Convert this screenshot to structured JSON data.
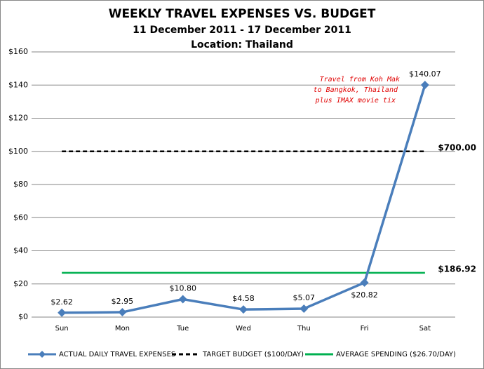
{
  "chart_data": {
    "type": "line",
    "title": "WEEKLY TRAVEL EXPENSES VS. BUDGET",
    "subtitle": "11 December 2011 - 17 December 2011",
    "location": "Location: Thailand",
    "categories": [
      "Sun",
      "Mon",
      "Tue",
      "Wed",
      "Thu",
      "Fri",
      "Sat"
    ],
    "series": [
      {
        "name": "ACTUAL DAILY TRAVEL EXPENSES",
        "color": "#4a7ebb",
        "style": "solid-diamond",
        "values": [
          2.62,
          2.95,
          10.8,
          4.58,
          5.07,
          20.82,
          140.07
        ],
        "value_labels": [
          "$2.62",
          "$2.95",
          "$10.80",
          "$4.58",
          "$5.07",
          "$20.82",
          "$140.07"
        ]
      },
      {
        "name": "TARGET BUDGET ($100/DAY)",
        "color": "#000000",
        "style": "dashed",
        "values": [
          100,
          100,
          100,
          100,
          100,
          100,
          100
        ],
        "end_label": "$700.00"
      },
      {
        "name": "AVERAGE SPENDING ($26.70/DAY)",
        "color": "#00b050",
        "style": "solid",
        "values": [
          26.7,
          26.7,
          26.7,
          26.7,
          26.7,
          26.7,
          26.7
        ],
        "end_label": "$186.92"
      }
    ],
    "annotation": [
      "Travel from Koh Mak",
      "to Bangkok, Thailand",
      "plus IMAX movie tix"
    ],
    "ylim": [
      0,
      160
    ],
    "yticks": [
      {
        "value": 0,
        "label": "$0"
      },
      {
        "value": 20,
        "label": "$20"
      },
      {
        "value": 40,
        "label": "$40"
      },
      {
        "value": 60,
        "label": "$60"
      },
      {
        "value": 80,
        "label": "$80"
      },
      {
        "value": 100,
        "label": "$100"
      },
      {
        "value": 120,
        "label": "$120"
      },
      {
        "value": 140,
        "label": "$140"
      },
      {
        "value": 160,
        "label": "$160"
      }
    ],
    "grid": true,
    "legend": "bottom"
  }
}
